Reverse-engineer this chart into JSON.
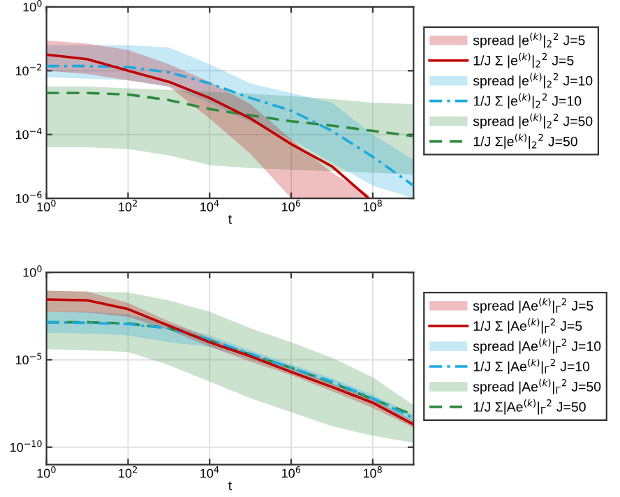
{
  "chart_data": [
    {
      "type": "line",
      "xlabel": "t",
      "log": "xy",
      "grid": true,
      "legend": "right",
      "xlim": [
        1,
        1000000000.0
      ],
      "ylim": [
        1e-06,
        1
      ],
      "xticks": [
        {
          "value": 1,
          "label": "10$^{0}$"
        },
        {
          "value": 100,
          "label": "10$^{2}$"
        },
        {
          "value": 10000.0,
          "label": "10$^{4}$"
        },
        {
          "value": 1000000.0,
          "label": "10$^{6}$"
        },
        {
          "value": 100000000.0,
          "label": "10$^{8}$"
        }
      ],
      "yticks": [
        {
          "value": 1e-06,
          "label": "10$^{−6}$"
        },
        {
          "value": 0.0001,
          "label": "10$^{−4}$"
        },
        {
          "value": 0.01,
          "label": "10$^{−2}$"
        },
        {
          "value": 1,
          "label": "10$^{0}$"
        }
      ],
      "annotations": [
        "spread |e$^{(k)}$|$_{2}$$^{2}$ J=5",
        "spread |e$^{(k)}$|$_{2}$$^{2}$ J=10",
        "spread |e$^{(k)}$|$_{2}$$^{2}$ J=50"
      ],
      "series": [
        {
          "name": "1/J Σ |e$^{(k)}$|$_{2}$$^{2}$ J=5",
          "color": "#c00000",
          "line_style": "solid",
          "x": [
            1,
            10,
            100,
            1000,
            10000.0,
            100000.0,
            1000000.0,
            10000000.0,
            80000000.0
          ],
          "values": [
            0.032,
            0.023,
            0.01,
            0.0045,
            0.0014,
            0.00032,
            5e-05,
            1e-05,
            1e-06
          ],
          "lower": [
            0.01,
            0.0079,
            0.005,
            0.0032,
            0.00032,
            2.5e-05,
            1e-06,
            1e-06,
            1e-06
          ],
          "upper": [
            0.089,
            0.071,
            0.045,
            0.016,
            0.0045,
            0.00089,
            7.1e-05,
            6.3e-06,
            1.3e-06
          ]
        },
        {
          "name": "1/J Σ |e$^{(k)}$|$_{2}$$^{2}$ J=10",
          "color": "#1ca9e0",
          "line_style": "dashdot",
          "x": [
            1,
            10,
            100,
            1000,
            10000.0,
            100000.0,
            1000000.0,
            10000000.0,
            100000000.0,
            1000000000.0
          ],
          "values": [
            0.014,
            0.014,
            0.013,
            0.0089,
            0.004,
            0.0014,
            0.00056,
            0.00013,
            2e-05,
            2.5e-06
          ],
          "lower": [
            0.0063,
            0.0056,
            0.005,
            0.0032,
            0.001,
            0.00025,
            7.1e-05,
            1.3e-05,
            2.5e-06,
            1e-06
          ],
          "upper": [
            0.063,
            0.063,
            0.063,
            0.054,
            0.016,
            0.004,
            0.002,
            0.001,
            0.0001,
            1.6e-05
          ]
        },
        {
          "name": "1/J Σ|e$^{(k)}$|$_{2}$$^{2}$ J=50",
          "color": "#2e8b3e",
          "line_style": "dashed",
          "x": [
            1,
            10,
            100,
            1000,
            10000.0,
            100000.0,
            1000000.0,
            10000000.0,
            100000000.0,
            1000000000.0
          ],
          "values": [
            0.002,
            0.002,
            0.0018,
            0.0012,
            0.00063,
            0.0004,
            0.00026,
            0.00019,
            0.00013,
            8.9e-05
          ],
          "lower": [
            4e-05,
            4e-05,
            3.5e-05,
            2.2e-05,
            1.1e-05,
            8.9e-06,
            7.9e-06,
            7.1e-06,
            6.3e-06,
            5.6e-06
          ],
          "upper": [
            0.0032,
            0.0032,
            0.0028,
            0.0025,
            0.0022,
            0.0019,
            0.0016,
            0.0013,
            0.001,
            0.00089
          ]
        }
      ]
    },
    {
      "type": "line",
      "xlabel": "t",
      "log": "xy",
      "grid": true,
      "legend": "right",
      "xlim": [
        1,
        1000000000.0
      ],
      "ylim": [
        1e-11,
        1
      ],
      "xticks": [
        {
          "value": 1,
          "label": "10$^{0}$"
        },
        {
          "value": 100,
          "label": "10$^{2}$"
        },
        {
          "value": 10000.0,
          "label": "10$^{4}$"
        },
        {
          "value": 1000000.0,
          "label": "10$^{6}$"
        },
        {
          "value": 100000000.0,
          "label": "10$^{8}$"
        }
      ],
      "yticks": [
        {
          "value": 1e-10,
          "label": "10$^{−10}$"
        },
        {
          "value": 1e-05,
          "label": "10$^{−5}$"
        },
        {
          "value": 1,
          "label": "10$^{0}$"
        }
      ],
      "annotations": [
        "spread |Ae$^{(k)}$|$_{Γ}$$^{2}$ J=5",
        "spread |Ae$^{(k)}$|$_{Γ}$$^{2}$ J=10",
        "spread |Ae$^{(k)}$|$_{Γ}$$^{2}$ J=50"
      ],
      "series": [
        {
          "name": "1/J Σ |Ae$^{(k)}$|$_{Γ}$$^{2}$ J=5",
          "color": "#c00000",
          "line_style": "solid",
          "x": [
            1,
            10,
            100,
            1000,
            10000.0,
            100000.0,
            1000000.0,
            10000000.0,
            100000000.0,
            1000000000.0
          ],
          "values": [
            0.028,
            0.025,
            0.0079,
            0.00089,
            0.0001,
            1.6e-05,
            2e-06,
            2.8e-07,
            3.5e-08,
            2e-09
          ],
          "lower": [
            0.0056,
            0.005,
            0.0028,
            0.0005,
            5.6e-05,
            7.9e-06,
            1.3e-06,
            1.6e-07,
            1.8e-08,
            1.3e-09
          ],
          "upper": [
            0.089,
            0.079,
            0.018,
            0.0016,
            0.00018,
            2.2e-05,
            3.5e-06,
            4.5e-07,
            5.6e-08,
            3.2e-09
          ]
        },
        {
          "name": "1/J Σ |Ae$^{(k)}$|$_{Γ}$$^{2}$ J=10",
          "color": "#1ca9e0",
          "line_style": "dashdot",
          "x": [
            1,
            10,
            100,
            1000,
            10000.0,
            100000.0,
            1000000.0,
            10000000.0,
            100000000.0,
            1000000000.0
          ],
          "values": [
            0.0014,
            0.0013,
            0.0011,
            0.00063,
            0.00014,
            2.2e-05,
            3.5e-06,
            5.6e-07,
            6.3e-08,
            4.5e-09
          ],
          "lower": [
            0.00035,
            0.00032,
            0.00025,
            0.0001,
            5.6e-05,
            1.1e-05,
            1.8e-06,
            2.8e-07,
            3.2e-08,
            2.5e-09
          ],
          "upper": [
            0.0056,
            0.0056,
            0.004,
            0.0011,
            0.00025,
            3.5e-05,
            5.6e-06,
            8.9e-07,
            1e-07,
            7.1e-09
          ]
        },
        {
          "name": "1/J Σ|Ae$^{(k)}$|$_{Γ}$$^{2}$ J=50",
          "color": "#2e8b3e",
          "line_style": "dashed",
          "x": [
            1,
            10,
            100,
            1000,
            10000.0,
            100000.0,
            1000000.0,
            10000000.0,
            100000000.0,
            1000000000.0
          ],
          "values": [
            0.0014,
            0.0014,
            0.0012,
            0.00063,
            0.00013,
            2e-05,
            3.5e-06,
            5e-07,
            5.6e-08,
            7.1e-09
          ],
          "lower": [
            4e-05,
            3.5e-05,
            2.8e-05,
            5e-06,
            5.6e-07,
            6.3e-08,
            1e-08,
            1.6e-09,
            4.5e-10,
            1.8e-10
          ],
          "upper": [
            0.089,
            0.079,
            0.071,
            0.025,
            0.0056,
            0.00063,
            0.0001,
            1.3e-05,
            1e-06,
            2.5e-08
          ]
        }
      ]
    }
  ]
}
